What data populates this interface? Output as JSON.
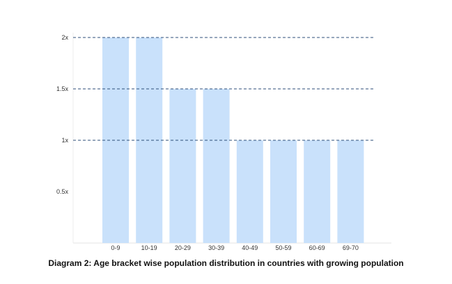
{
  "chart_data": {
    "type": "bar",
    "categories": [
      "0-9",
      "10-19",
      "20-29",
      "30-39",
      "40-49",
      "50-59",
      "60-69",
      "69-70"
    ],
    "values": [
      2,
      2,
      1.5,
      1.5,
      1,
      1,
      1,
      1
    ],
    "ylim": [
      0,
      2
    ],
    "yticks": [
      {
        "value": 0.5,
        "label": "0.5x"
      },
      {
        "value": 1,
        "label": "1x"
      },
      {
        "value": 1.5,
        "label": "1.5x"
      },
      {
        "value": 2,
        "label": "2x"
      }
    ],
    "dashed_gridlines_at": [
      1,
      1.5,
      2
    ],
    "bar_color": "#c9e1fb",
    "grid_color": "#2d4e78",
    "grid": "dashed"
  },
  "caption": "Diagram 2: Age bracket wise population distribution in countries with growing population"
}
